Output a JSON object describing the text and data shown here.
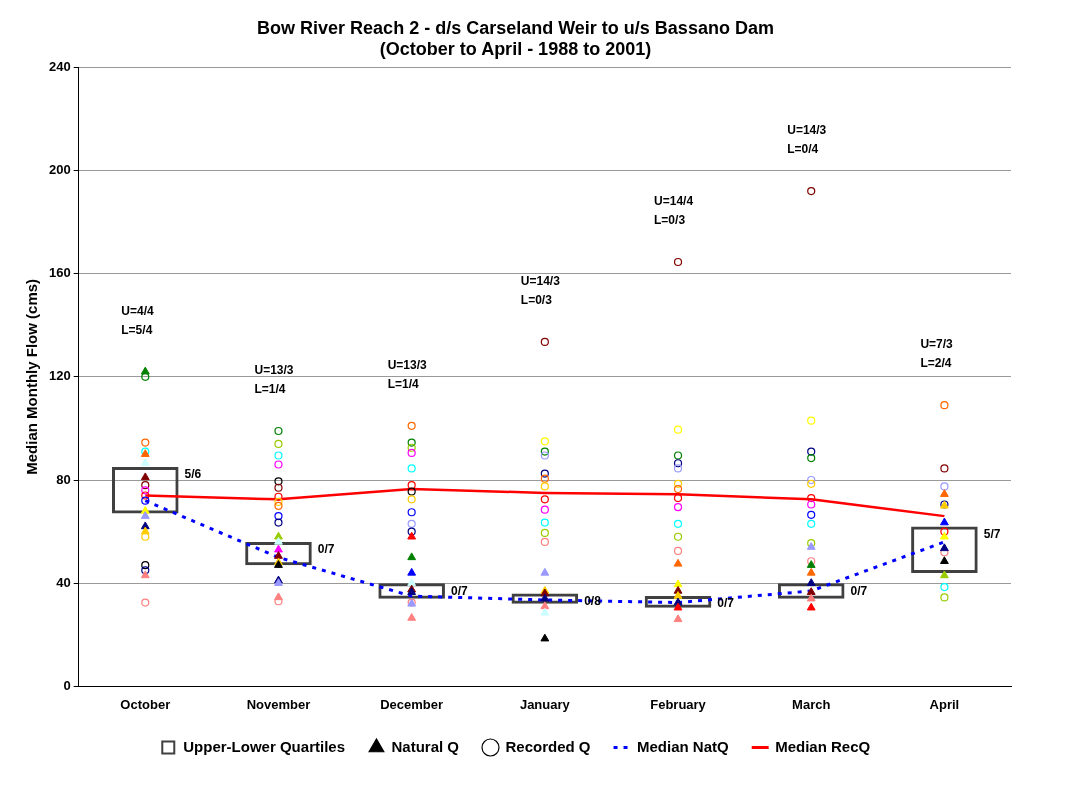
{
  "chart_data": {
    "type": "bar",
    "title": "Bow River Reach 2 - d/s Carseland Weir to u/s Bassano Dam\n(October to April - 1988 to 2001)",
    "ylabel": "Median Monthly Flow (cms)",
    "categories": [
      "October",
      "November",
      "December",
      "January",
      "February",
      "March",
      "April"
    ],
    "ylim": [
      0,
      240
    ],
    "yticks": [
      0,
      40,
      80,
      120,
      160,
      200,
      240
    ],
    "grid": "y",
    "legend": "bottom",
    "annotations": [
      "U=4/4\nL=5/4",
      "U=13/3\nL=1/4",
      "U=13/3\nL=1/4",
      "U=14/3\nL=0/3",
      "U=14/4\nL=0/3",
      "U=14/3\nL=0/4",
      "U=7/3\nL=2/4",
      "5/6",
      "0/7",
      "0/7",
      "0/8",
      "0/7",
      "0/7",
      "5/7"
    ],
    "series": [
      {
        "name": "Upper-Lower Quartiles",
        "color": "#404040",
        "base": [
          67,
          47,
          34,
          32,
          30.5,
          34,
          44
        ],
        "values": [
          18,
          9,
          6,
          4,
          4.5,
          6,
          18
        ]
      },
      {
        "name": "Natural Q",
        "type": "scatter",
        "marker": "triangle",
        "color": "#000000",
        "x": [
          "October",
          "October",
          "October",
          "October",
          "October",
          "October",
          "October",
          "October",
          "October",
          "November",
          "November",
          "November",
          "November",
          "November",
          "November",
          "November",
          "November",
          "November",
          "December",
          "December",
          "December",
          "December",
          "December",
          "December",
          "December",
          "December",
          "January",
          "January",
          "January",
          "January",
          "January",
          "January",
          "January",
          "February",
          "February",
          "February",
          "February",
          "February",
          "February",
          "February",
          "March",
          "March",
          "March",
          "March",
          "March",
          "March",
          "March",
          "April",
          "April",
          "April",
          "April",
          "April",
          "April",
          "April"
        ],
        "values": [
          122,
          90,
          86.5,
          81,
          68,
          66,
          62,
          60,
          43,
          58,
          56,
          53,
          50.5,
          48,
          47,
          41,
          40,
          34.5,
          58,
          50,
          44,
          40,
          37.5,
          36.5,
          32,
          26.5,
          44,
          37,
          36,
          34,
          31,
          28.5,
          18.5,
          47.5,
          39.5,
          37,
          35,
          32.5,
          30.5,
          26,
          54,
          47,
          44,
          40,
          36.5,
          34,
          30.5,
          74.5,
          70,
          63.5,
          58,
          53.5,
          48.5,
          43
        ],
        "colors": [
          "#008000",
          "#ff6600",
          "#ccffff",
          "#800000",
          "#ffff00",
          "#9999ff",
          "#000080",
          "#ffcc00",
          "#ff8080",
          "#99cc00",
          "#ccffff",
          "#ff00ff",
          "#800000",
          "#ffcc00",
          "#000000",
          "#000080",
          "#9999ff",
          "#ff8080",
          "#ff0000",
          "#008000",
          "#0000ff",
          "#ccffff",
          "#800000",
          "#000080",
          "#9999ff",
          "#ff8080",
          "#9999ff",
          "#ffcc00",
          "#800000",
          "#000080",
          "#ff8080",
          "#ccffff",
          "#000000",
          "#ff6600",
          "#ffff00",
          "#800000",
          "#ffcc00",
          "#000080",
          "#ff0000",
          "#ff8080",
          "#9999ff",
          "#008000",
          "#ff6600",
          "#000080",
          "#800000",
          "#ff8080",
          "#ff0000",
          "#ff6600",
          "#ffcc00",
          "#0000ff",
          "#ffff00",
          "#000080",
          "#000000",
          "#99cc00"
        ]
      },
      {
        "name": "Recorded Q",
        "type": "scatter",
        "marker": "circle",
        "color": "#000000",
        "x": [
          "October",
          "October",
          "October",
          "October",
          "October",
          "October",
          "October",
          "October",
          "October",
          "October",
          "October",
          "November",
          "November",
          "November",
          "November",
          "November",
          "November",
          "November",
          "November",
          "November",
          "November",
          "November",
          "November",
          "December",
          "December",
          "December",
          "December",
          "December",
          "December",
          "December",
          "December",
          "December",
          "December",
          "December",
          "December",
          "January",
          "January",
          "January",
          "January",
          "January",
          "January",
          "January",
          "January",
          "January",
          "January",
          "January",
          "January",
          "February",
          "February",
          "February",
          "February",
          "February",
          "February",
          "February",
          "February",
          "February",
          "February",
          "February",
          "February",
          "March",
          "March",
          "March",
          "March",
          "March",
          "March",
          "March",
          "March",
          "March",
          "March",
          "March",
          "March",
          "April",
          "April",
          "April",
          "April",
          "April",
          "April",
          "April",
          "April"
        ],
        "values": [
          120,
          94.5,
          91,
          78,
          76,
          74,
          72,
          58,
          47,
          45,
          32.5,
          99,
          94,
          89.5,
          86,
          79.5,
          77,
          73.5,
          71.5,
          70,
          66,
          63.5,
          33,
          101,
          94.5,
          92.5,
          90.5,
          84.5,
          78,
          75.5,
          72.5,
          67.5,
          63,
          60,
          32.5,
          133.5,
          95,
          91,
          89.5,
          82.5,
          80.5,
          77.5,
          72.5,
          68.5,
          63.5,
          59.5,
          56,
          164.5,
          99.5,
          89.5,
          86.5,
          84.5,
          78.5,
          76.5,
          73,
          69.5,
          63,
          58,
          52.5,
          192,
          103,
          91,
          88.5,
          80,
          78.5,
          73,
          70.5,
          66.5,
          63,
          55.5,
          48.5,
          109,
          84.5,
          77.5,
          70.5,
          60,
          52,
          38.5,
          34.5
        ],
        "colors": [
          "#008000",
          "#ff6600",
          "#00ffff",
          "#800000",
          "#ff00ff",
          "#ff0000",
          "#0000ff",
          "#ffcc00",
          "#000000",
          "#000080",
          "#ff8080",
          "#008000",
          "#99cc00",
          "#00ffff",
          "#ff00ff",
          "#000000",
          "#800000",
          "#ff0000",
          "#ffcc00",
          "#ff6600",
          "#0000ff",
          "#000080",
          "#ff8080",
          "#ff6600",
          "#008000",
          "#99cc00",
          "#ff00ff",
          "#00ffff",
          "#ff0000",
          "#000000",
          "#ffcc00",
          "#0000ff",
          "#9999ff",
          "#000080",
          "#ff8080",
          "#800000",
          "#ffff00",
          "#008000",
          "#9999ff",
          "#000080",
          "#ff6600",
          "#ffcc00",
          "#ff0000",
          "#ff00ff",
          "#00ffff",
          "#99cc00",
          "#ff8080",
          "#800000",
          "#ffff00",
          "#008000",
          "#000080",
          "#9999ff",
          "#ffcc00",
          "#ff6600",
          "#ff0000",
          "#ff00ff",
          "#00ffff",
          "#99cc00",
          "#ff8080",
          "#800000",
          "#ffff00",
          "#000080",
          "#008000",
          "#9999ff",
          "#ffcc00",
          "#ff0000",
          "#ff00ff",
          "#0000ff",
          "#00ffff",
          "#99cc00",
          "#ff8080",
          "#ff6600",
          "#800000",
          "#9999ff",
          "#000080",
          "#ff0000",
          "#ff8080",
          "#00ffff",
          "#99cc00"
        ]
      },
      {
        "name": "Median NatQ",
        "type": "line",
        "line_style": "dashed",
        "color": "#0000ff",
        "values": [
          72,
          50,
          35,
          33.5,
          32.5,
          37,
          56
        ]
      },
      {
        "name": "Median RecQ",
        "type": "line",
        "line_style": "solid",
        "color": "#ff0000",
        "values": [
          74,
          72.5,
          76.5,
          75,
          74.5,
          72.5,
          66
        ]
      }
    ]
  }
}
